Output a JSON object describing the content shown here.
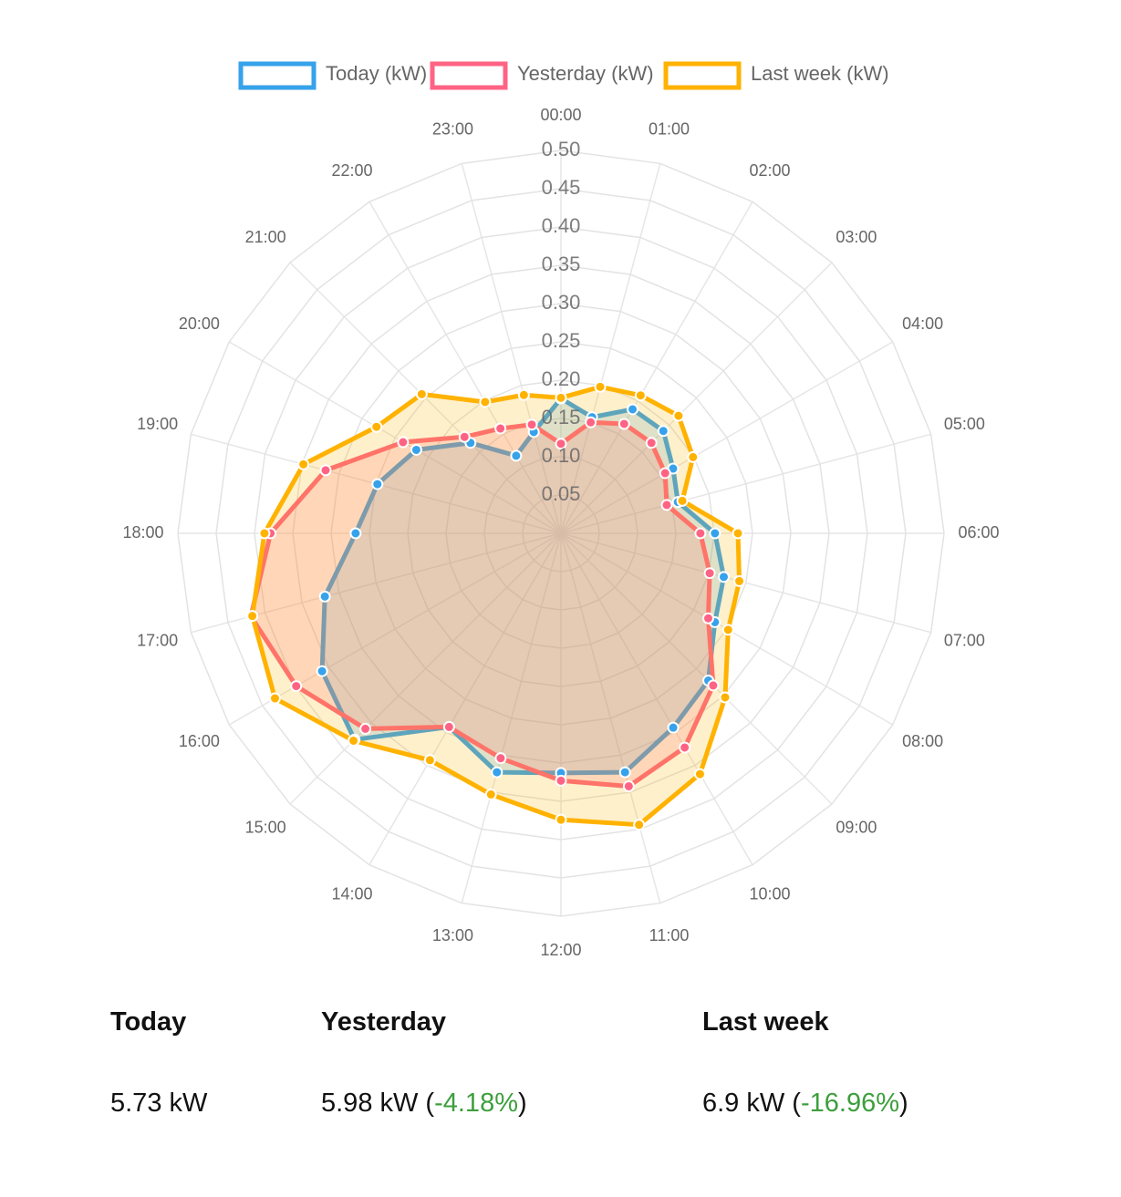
{
  "chart_data": {
    "type": "radar",
    "categories": [
      "00:00",
      "01:00",
      "02:00",
      "03:00",
      "04:00",
      "05:00",
      "06:00",
      "07:00",
      "08:00",
      "09:00",
      "10:00",
      "11:00",
      "12:00",
      "13:00",
      "14:00",
      "15:00",
      "16:00",
      "17:00",
      "18:00",
      "19:00",
      "20:00",
      "21:00",
      "22:00",
      "23:00"
    ],
    "ylim": [
      0,
      0.5
    ],
    "yticks": [
      0.05,
      {
        "value": 0.1,
        "label": "0.10"
      },
      0.15,
      {
        "value": 0.2,
        "label": "0.20"
      },
      0.25,
      {
        "value": 0.3,
        "label": "0.30"
      },
      0.35,
      {
        "value": 0.4,
        "label": "0.40"
      },
      0.45,
      {
        "value": 0.5,
        "label": "0.50"
      }
    ],
    "grid": true,
    "legend": "top",
    "series": [
      {
        "name": "Today (kW)",
        "color": "#36a2eb",
        "values": [
          0.176,
          0.157,
          0.187,
          0.189,
          0.169,
          0.158,
          0.201,
          0.22,
          0.232,
          0.272,
          0.293,
          0.323,
          0.313,
          0.323,
          0.292,
          0.381,
          0.36,
          0.319,
          0.268,
          0.248,
          0.218,
          0.167,
          0.117,
          0.137
        ]
      },
      {
        "name": "Yesterday (kW)",
        "color": "#ff6384",
        "values": [
          0.117,
          0.15,
          0.165,
          0.167,
          0.157,
          0.143,
          0.182,
          0.201,
          0.222,
          0.281,
          0.323,
          0.342,
          0.323,
          0.304,
          0.292,
          0.361,
          0.399,
          0.419,
          0.379,
          0.318,
          0.238,
          0.178,
          0.158,
          0.147
        ]
      },
      {
        "name": "Last week (kW)",
        "color": "#ffb200",
        "values": [
          0.177,
          0.198,
          0.208,
          0.217,
          0.199,
          0.164,
          0.231,
          0.241,
          0.252,
          0.303,
          0.363,
          0.394,
          0.374,
          0.353,
          0.342,
          0.383,
          0.431,
          0.417,
          0.387,
          0.348,
          0.278,
          0.257,
          0.198,
          0.187
        ]
      }
    ]
  },
  "stats": [
    {
      "label": "Today",
      "segments": [
        "5.73 kW"
      ]
    },
    {
      "label": "Yesterday",
      "segments": [
        "5.98 kW (",
        "-4.18%",
        ")"
      ]
    },
    {
      "label": "Last week",
      "segments": [
        "6.9 kW (",
        "-16.96%",
        ")"
      ]
    }
  ]
}
